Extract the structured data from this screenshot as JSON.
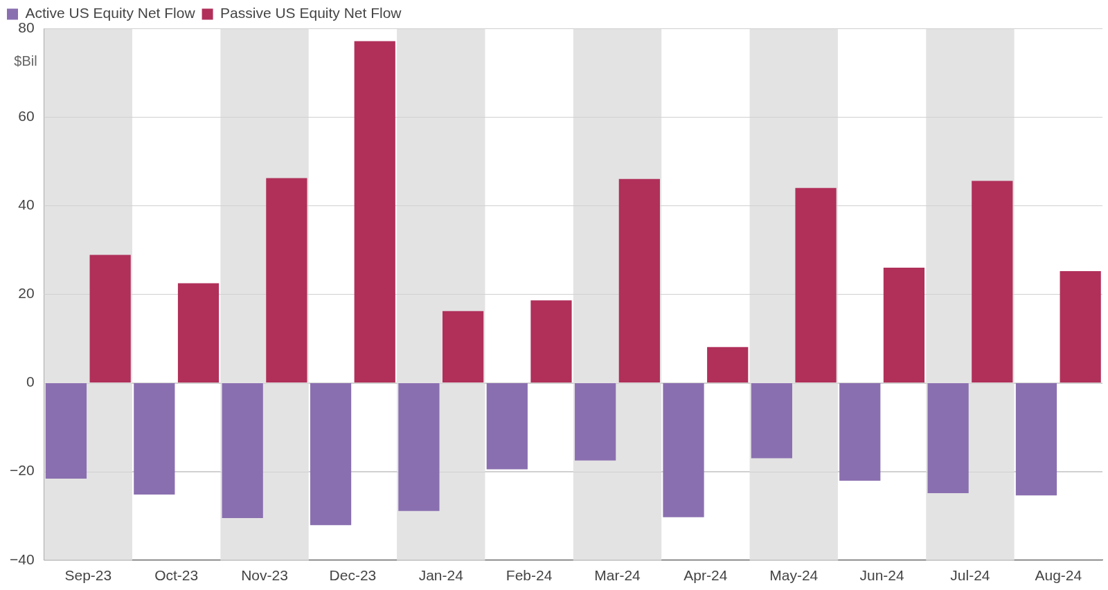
{
  "chart_data": {
    "type": "bar",
    "ylabel": "$Bil",
    "categories": [
      "Sep-23",
      "Oct-23",
      "Nov-23",
      "Dec-23",
      "Jan-24",
      "Feb-24",
      "Mar-24",
      "Apr-24",
      "May-24",
      "Jun-24",
      "Jul-24",
      "Aug-24"
    ],
    "series": [
      {
        "name": "Active US Equity Net Flow",
        "color": "#8a6fb0",
        "values": [
          -21.6,
          -25.2,
          -30.5,
          -32.1,
          -28.9,
          -19.5,
          -17.5,
          -30.3,
          -17.0,
          -22.1,
          -24.9,
          -25.4
        ]
      },
      {
        "name": "Passive US Equity Net Flow",
        "color": "#b0305a",
        "values": [
          28.9,
          22.5,
          46.2,
          77.1,
          16.2,
          18.6,
          46.0,
          8.1,
          44.0,
          26.0,
          45.6,
          25.2
        ]
      }
    ],
    "ylim": [
      -40,
      80
    ],
    "yticks": [
      {
        "value": -40,
        "label": "−40"
      },
      {
        "value": -20,
        "label": "−20"
      },
      0,
      20,
      40,
      60,
      80
    ],
    "grid": true,
    "legend": "top-left"
  }
}
